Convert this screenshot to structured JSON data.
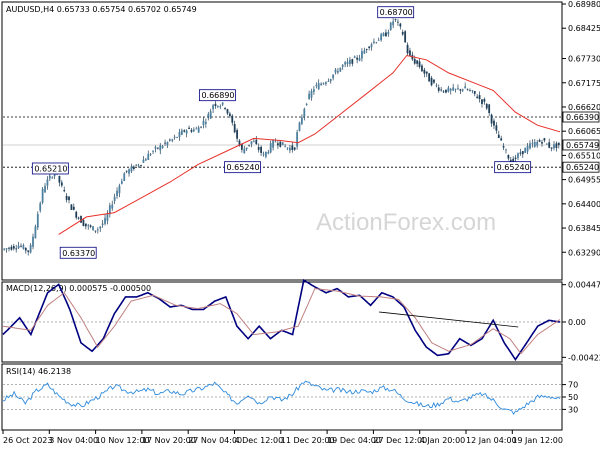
{
  "chart_data": [
    {
      "type": "candlestick",
      "header": "AUDUSD,H4 0.65733 0.65754 0.65702 0.65749",
      "watermark": "ActionForex.com",
      "ylim": [
        0.627,
        0.6898
      ],
      "y_ticks": [
        "0.68980",
        "0.68425",
        "0.67730",
        "0.67175",
        "0.66620",
        "0.66065",
        "0.65510",
        "0.64955",
        "0.64400",
        "0.63845",
        "0.63290"
      ],
      "y_tick_values": [
        0.6898,
        0.68425,
        0.6773,
        0.67175,
        0.6662,
        0.66065,
        0.6551,
        0.64955,
        0.644,
        0.63845,
        0.6329
      ],
      "x_labels": [
        "26 Oct 2023",
        "3 Nov 04:00",
        "10 Nov 12:00",
        "17 Nov 20:00",
        "27 Nov 04:00",
        "4 Dec 12:00",
        "11 Dec 20:00",
        "19 Dec 04:00",
        "27 Dec 12:00",
        "4 Jan 20:00",
        "12 Jan 04:00",
        "19 Jan 12:00"
      ],
      "last_price": {
        "label": "0.65749",
        "value": 0.65749
      },
      "levels": [
        {
          "label": "0.66390",
          "value": 0.6639
        },
        {
          "label": "0.65240",
          "value": 0.6524
        }
      ],
      "annotations": [
        {
          "label": "0.65210",
          "value": 0.6521,
          "t": 0.085
        },
        {
          "label": "0.63370",
          "value": 0.6337,
          "t": 0.135
        },
        {
          "label": "0.66890",
          "value": 0.6689,
          "t": 0.385
        },
        {
          "label": "0.65240",
          "value": 0.6524,
          "t": 0.43
        },
        {
          "label": "0.68700",
          "value": 0.687,
          "t": 0.705
        },
        {
          "label": "0.65240",
          "value": 0.6524,
          "t": 0.915
        }
      ],
      "price_path": [
        [
          0.0,
          0.6335
        ],
        [
          0.03,
          0.6345
        ],
        [
          0.05,
          0.633
        ],
        [
          0.075,
          0.648
        ],
        [
          0.095,
          0.6515
        ],
        [
          0.11,
          0.647
        ],
        [
          0.13,
          0.642
        ],
        [
          0.15,
          0.639
        ],
        [
          0.17,
          0.638
        ],
        [
          0.185,
          0.64
        ],
        [
          0.2,
          0.645
        ],
        [
          0.22,
          0.651
        ],
        [
          0.25,
          0.6535
        ],
        [
          0.27,
          0.656
        ],
        [
          0.29,
          0.6575
        ],
        [
          0.31,
          0.659
        ],
        [
          0.33,
          0.661
        ],
        [
          0.35,
          0.661
        ],
        [
          0.37,
          0.664
        ],
        [
          0.38,
          0.667
        ],
        [
          0.4,
          0.6665
        ],
        [
          0.415,
          0.662
        ],
        [
          0.43,
          0.656
        ],
        [
          0.45,
          0.6585
        ],
        [
          0.47,
          0.655
        ],
        [
          0.49,
          0.6585
        ],
        [
          0.51,
          0.657
        ],
        [
          0.525,
          0.6565
        ],
        [
          0.53,
          0.66
        ],
        [
          0.545,
          0.667
        ],
        [
          0.56,
          0.6705
        ],
        [
          0.59,
          0.673
        ],
        [
          0.61,
          0.6755
        ],
        [
          0.64,
          0.6775
        ],
        [
          0.66,
          0.6805
        ],
        [
          0.69,
          0.683
        ],
        [
          0.705,
          0.6865
        ],
        [
          0.72,
          0.683
        ],
        [
          0.73,
          0.678
        ],
        [
          0.75,
          0.6755
        ],
        [
          0.77,
          0.672
        ],
        [
          0.79,
          0.67
        ],
        [
          0.81,
          0.67
        ],
        [
          0.83,
          0.6705
        ],
        [
          0.85,
          0.669
        ],
        [
          0.87,
          0.6665
        ],
        [
          0.885,
          0.661
        ],
        [
          0.9,
          0.657
        ],
        [
          0.915,
          0.6535
        ],
        [
          0.93,
          0.6555
        ],
        [
          0.95,
          0.6575
        ],
        [
          0.97,
          0.6585
        ],
        [
          0.985,
          0.657
        ],
        [
          1.0,
          0.6575
        ]
      ],
      "ma_path": [
        [
          0.1,
          0.637
        ],
        [
          0.15,
          0.641
        ],
        [
          0.2,
          0.642
        ],
        [
          0.25,
          0.6455
        ],
        [
          0.3,
          0.649
        ],
        [
          0.35,
          0.653
        ],
        [
          0.4,
          0.656
        ],
        [
          0.45,
          0.659
        ],
        [
          0.5,
          0.6585
        ],
        [
          0.53,
          0.658
        ],
        [
          0.56,
          0.66
        ],
        [
          0.6,
          0.664
        ],
        [
          0.65,
          0.669
        ],
        [
          0.7,
          0.674
        ],
        [
          0.725,
          0.678
        ],
        [
          0.76,
          0.677
        ],
        [
          0.8,
          0.674
        ],
        [
          0.85,
          0.6715
        ],
        [
          0.88,
          0.67
        ],
        [
          0.92,
          0.665
        ],
        [
          0.96,
          0.662
        ],
        [
          1.0,
          0.6605
        ]
      ]
    },
    {
      "type": "line",
      "header": "MACD(12,26,9) 0.000575 -0.000500",
      "ylim": [
        -0.00455,
        0.00455
      ],
      "y_ticks": [
        "0.004472",
        "0.00",
        "-0.004229"
      ],
      "y_tick_values": [
        0.00447,
        0.0,
        -0.00423
      ],
      "series": [
        {
          "name": "MACD",
          "color": "#000080",
          "points": [
            [
              0.0,
              -0.0015
            ],
            [
              0.03,
              0.0005
            ],
            [
              0.05,
              -0.0015
            ],
            [
              0.08,
              0.0035
            ],
            [
              0.1,
              0.0045
            ],
            [
              0.12,
              0.0015
            ],
            [
              0.14,
              -0.0025
            ],
            [
              0.16,
              -0.0035
            ],
            [
              0.18,
              -0.002
            ],
            [
              0.2,
              0.001
            ],
            [
              0.22,
              0.003
            ],
            [
              0.24,
              0.003
            ],
            [
              0.26,
              0.0035
            ],
            [
              0.28,
              0.0028
            ],
            [
              0.3,
              0.0018
            ],
            [
              0.32,
              0.002
            ],
            [
              0.34,
              0.0015
            ],
            [
              0.36,
              0.0015
            ],
            [
              0.38,
              0.0025
            ],
            [
              0.4,
              0.003
            ],
            [
              0.42,
              -0.0005
            ],
            [
              0.44,
              -0.002
            ],
            [
              0.46,
              -0.0005
            ],
            [
              0.48,
              -0.002
            ],
            [
              0.5,
              -0.001
            ],
            [
              0.52,
              -0.0015
            ],
            [
              0.54,
              0.005
            ],
            [
              0.56,
              0.0042
            ],
            [
              0.58,
              0.0035
            ],
            [
              0.6,
              0.004
            ],
            [
              0.62,
              0.003
            ],
            [
              0.64,
              0.0032
            ],
            [
              0.66,
              0.002
            ],
            [
              0.68,
              0.0035
            ],
            [
              0.7,
              0.003
            ],
            [
              0.72,
              0.0018
            ],
            [
              0.74,
              -0.001
            ],
            [
              0.76,
              -0.003
            ],
            [
              0.78,
              -0.004
            ],
            [
              0.8,
              -0.0038
            ],
            [
              0.82,
              -0.002
            ],
            [
              0.84,
              -0.0028
            ],
            [
              0.86,
              -0.002
            ],
            [
              0.88,
              0.0002
            ],
            [
              0.9,
              -0.0025
            ],
            [
              0.92,
              -0.0045
            ],
            [
              0.94,
              -0.0025
            ],
            [
              0.96,
              -0.0005
            ],
            [
              0.98,
              0.0002
            ],
            [
              1.0,
              0.0
            ]
          ]
        },
        {
          "name": "Signal",
          "color": "#c08080",
          "points": [
            [
              0.0,
              -0.0005
            ],
            [
              0.05,
              -0.001
            ],
            [
              0.08,
              0.002
            ],
            [
              0.11,
              0.0035
            ],
            [
              0.14,
              0.0005
            ],
            [
              0.17,
              -0.003
            ],
            [
              0.2,
              -0.0005
            ],
            [
              0.23,
              0.0025
            ],
            [
              0.27,
              0.0032
            ],
            [
              0.31,
              0.002
            ],
            [
              0.35,
              0.0016
            ],
            [
              0.39,
              0.0022
            ],
            [
              0.42,
              0.001
            ],
            [
              0.45,
              -0.0015
            ],
            [
              0.49,
              -0.0012
            ],
            [
              0.53,
              -0.0005
            ],
            [
              0.56,
              0.004
            ],
            [
              0.6,
              0.0037
            ],
            [
              0.64,
              0.0031
            ],
            [
              0.68,
              0.003
            ],
            [
              0.71,
              0.0027
            ],
            [
              0.74,
              0.0005
            ],
            [
              0.77,
              -0.0025
            ],
            [
              0.8,
              -0.0035
            ],
            [
              0.84,
              -0.0027
            ],
            [
              0.88,
              -0.0008
            ],
            [
              0.91,
              -0.002
            ],
            [
              0.93,
              -0.0038
            ],
            [
              0.96,
              -0.0015
            ],
            [
              1.0,
              0.0003
            ]
          ]
        }
      ],
      "trendline": [
        [
          0.675,
          0.0012
        ],
        [
          0.925,
          -0.0006
        ]
      ]
    },
    {
      "type": "line",
      "header": "RSI(14) 46.2138",
      "ylim": [
        0,
        100
      ],
      "y_ticks": [
        "100",
        "70",
        "50",
        "30",
        "0"
      ],
      "y_tick_values": [
        100,
        70,
        50,
        30,
        0
      ],
      "series": [
        {
          "name": "RSI",
          "color": "#2e8bdc",
          "points": [
            [
              0.0,
              45
            ],
            [
              0.02,
              55
            ],
            [
              0.04,
              40
            ],
            [
              0.06,
              60
            ],
            [
              0.08,
              70
            ],
            [
              0.1,
              52
            ],
            [
              0.12,
              40
            ],
            [
              0.14,
              35
            ],
            [
              0.16,
              45
            ],
            [
              0.18,
              55
            ],
            [
              0.2,
              68
            ],
            [
              0.22,
              60
            ],
            [
              0.24,
              58
            ],
            [
              0.26,
              62
            ],
            [
              0.28,
              55
            ],
            [
              0.3,
              60
            ],
            [
              0.32,
              55
            ],
            [
              0.34,
              60
            ],
            [
              0.36,
              65
            ],
            [
              0.38,
              72
            ],
            [
              0.4,
              55
            ],
            [
              0.42,
              40
            ],
            [
              0.44,
              55
            ],
            [
              0.46,
              40
            ],
            [
              0.48,
              52
            ],
            [
              0.5,
              45
            ],
            [
              0.52,
              55
            ],
            [
              0.54,
              75
            ],
            [
              0.56,
              68
            ],
            [
              0.58,
              60
            ],
            [
              0.6,
              62
            ],
            [
              0.62,
              58
            ],
            [
              0.64,
              60
            ],
            [
              0.66,
              58
            ],
            [
              0.68,
              65
            ],
            [
              0.7,
              62
            ],
            [
              0.72,
              48
            ],
            [
              0.74,
              40
            ],
            [
              0.76,
              35
            ],
            [
              0.78,
              38
            ],
            [
              0.8,
              48
            ],
            [
              0.82,
              42
            ],
            [
              0.84,
              50
            ],
            [
              0.86,
              55
            ],
            [
              0.88,
              45
            ],
            [
              0.9,
              30
            ],
            [
              0.92,
              25
            ],
            [
              0.94,
              38
            ],
            [
              0.96,
              50
            ],
            [
              0.98,
              52
            ],
            [
              1.0,
              46
            ]
          ]
        }
      ]
    }
  ]
}
